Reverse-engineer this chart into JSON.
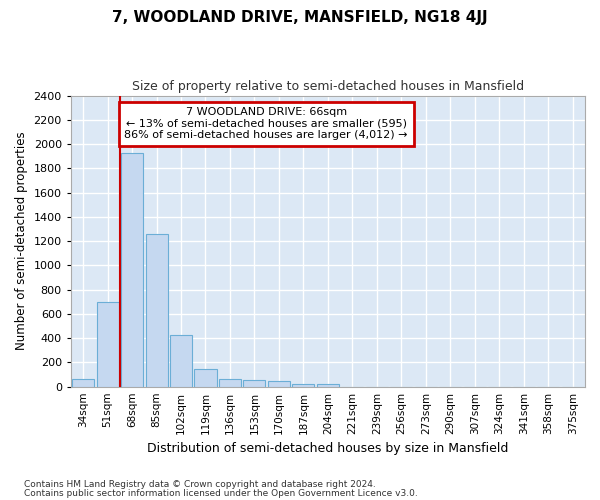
{
  "title": "7, WOODLAND DRIVE, MANSFIELD, NG18 4JJ",
  "subtitle": "Size of property relative to semi-detached houses in Mansfield",
  "xlabel": "Distribution of semi-detached houses by size in Mansfield",
  "ylabel": "Number of semi-detached properties",
  "bar_color": "#c5d8f0",
  "bar_edge_color": "#6baed6",
  "background_color": "#dce8f5",
  "grid_color": "#ffffff",
  "fig_background": "#ffffff",
  "categories": [
    "34sqm",
    "51sqm",
    "68sqm",
    "85sqm",
    "102sqm",
    "119sqm",
    "136sqm",
    "153sqm",
    "170sqm",
    "187sqm",
    "204sqm",
    "221sqm",
    "239sqm",
    "256sqm",
    "273sqm",
    "290sqm",
    "307sqm",
    "324sqm",
    "341sqm",
    "358sqm",
    "375sqm"
  ],
  "values": [
    65,
    700,
    1930,
    1260,
    430,
    145,
    65,
    55,
    45,
    25,
    20,
    0,
    0,
    0,
    0,
    0,
    0,
    0,
    0,
    0,
    0
  ],
  "ylim": [
    0,
    2400
  ],
  "yticks": [
    0,
    200,
    400,
    600,
    800,
    1000,
    1200,
    1400,
    1600,
    1800,
    2000,
    2200,
    2400
  ],
  "red_line_x": 1.5,
  "annotation_title": "7 WOODLAND DRIVE: 66sqm",
  "annotation_line1": "← 13% of semi-detached houses are smaller (595)",
  "annotation_line2": "86% of semi-detached houses are larger (4,012) →",
  "annotation_box_color": "#ffffff",
  "annotation_border_color": "#cc0000",
  "footer1": "Contains HM Land Registry data © Crown copyright and database right 2024.",
  "footer2": "Contains public sector information licensed under the Open Government Licence v3.0."
}
